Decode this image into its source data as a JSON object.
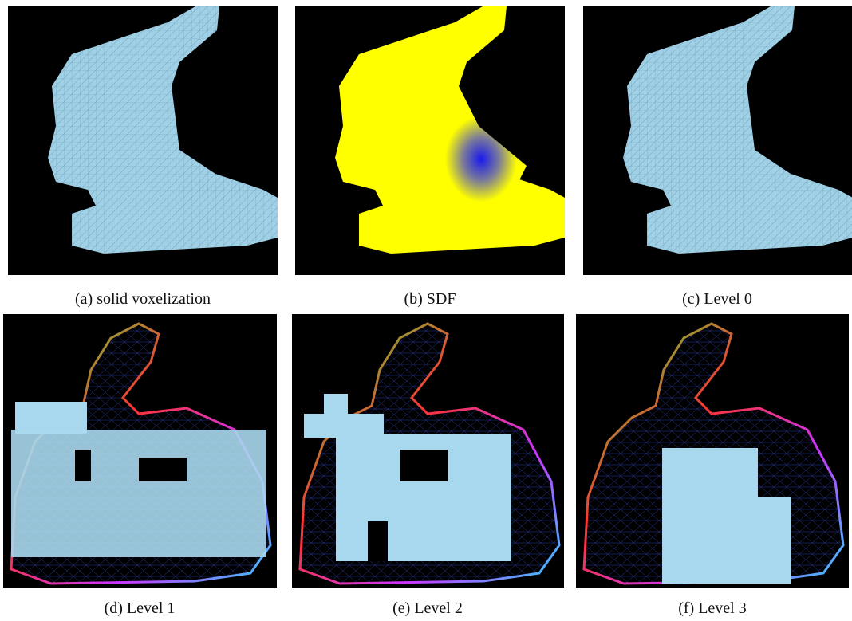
{
  "figure": {
    "captions": [
      "(a) solid voxelization",
      "(b) SDF",
      "(c) Level 0",
      "(d) Level 1",
      "(e) Level 2",
      "(f) Level 3"
    ]
  }
}
